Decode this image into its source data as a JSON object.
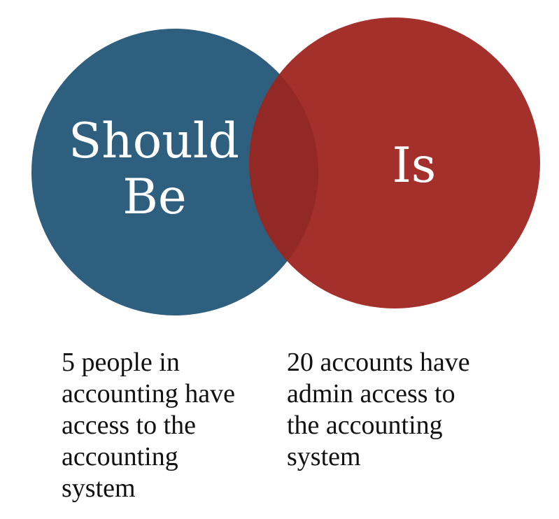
{
  "diagram": {
    "left_circle": {
      "label_lines": [
        "Should",
        "Be"
      ],
      "color": "#2f5f7e"
    },
    "right_circle": {
      "label": "Is",
      "color": "#a4302c"
    },
    "overlap_color": "#922924"
  },
  "captions": {
    "left": [
      "5 people in",
      "accounting have",
      "access to the",
      "accounting",
      "system"
    ],
    "right": [
      "20 accounts have",
      "admin access to",
      "the accounting",
      "system"
    ]
  }
}
